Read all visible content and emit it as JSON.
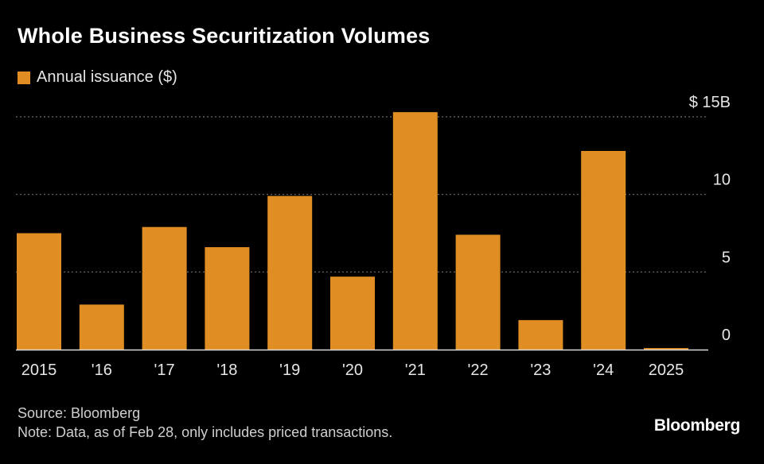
{
  "header": {
    "title": "Whole Business Securitization Volumes"
  },
  "legend": {
    "label": "Annual issuance ($)"
  },
  "chart_data": {
    "type": "bar",
    "title": "Whole Business Securitization Volumes",
    "xlabel": "",
    "ylabel": "",
    "categories": [
      "2015",
      "'16",
      "'17",
      "'18",
      "'19",
      "'20",
      "'21",
      "'22",
      "'23",
      "'24",
      "2025"
    ],
    "series": [
      {
        "name": "Annual issuance ($)",
        "values": [
          7.5,
          2.9,
          7.9,
          6.6,
          9.9,
          4.7,
          15.3,
          7.4,
          1.9,
          12.8,
          0.1
        ]
      }
    ],
    "ylim": [
      0,
      15
    ],
    "yticks": [
      0,
      5,
      10,
      15
    ],
    "ytick_labels": [
      "0",
      "5",
      "10",
      "$ 15B"
    ],
    "grid": true,
    "legend_position": "top-left"
  },
  "footer": {
    "source": "Source: Bloomberg",
    "note": "Note: Data, as of Feb 28, only includes priced transactions."
  },
  "brand": {
    "name": "Bloomberg"
  },
  "colors": {
    "background": "#000000",
    "bar": "#e08e24",
    "grid": "#6e6e6e",
    "axis": "#d9d9d9",
    "tick_text": "#e6e6e6"
  }
}
